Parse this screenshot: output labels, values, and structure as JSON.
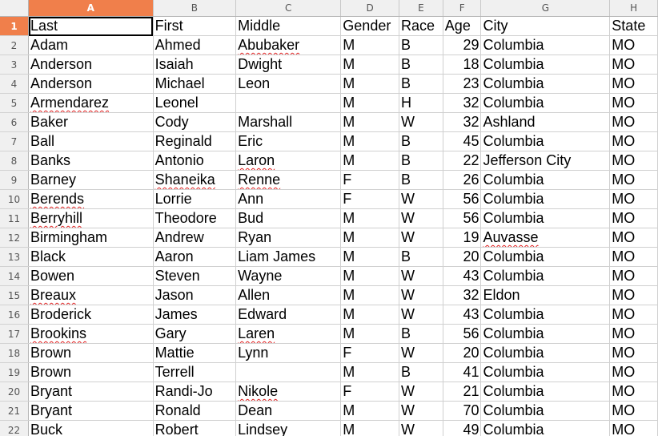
{
  "columns": [
    "A",
    "B",
    "C",
    "D",
    "E",
    "F",
    "G",
    "H"
  ],
  "active_column": "A",
  "active_row": 1,
  "rows": [
    {
      "num": "1",
      "cells": [
        "Last",
        "First",
        "Middle",
        "Gender",
        "Race",
        "Age",
        "City",
        "State"
      ]
    },
    {
      "num": "2",
      "cells": [
        "Adam",
        "Ahmed",
        "Abubaker",
        "M",
        "B",
        "29",
        "Columbia",
        "MO"
      ]
    },
    {
      "num": "3",
      "cells": [
        "Anderson",
        "Isaiah",
        "Dwight",
        "M",
        "B",
        "18",
        "Columbia",
        "MO"
      ]
    },
    {
      "num": "4",
      "cells": [
        "Anderson",
        "Michael",
        "Leon",
        "M",
        "B",
        "23",
        "Columbia",
        "MO"
      ]
    },
    {
      "num": "5",
      "cells": [
        "Armendarez",
        "Leonel",
        "",
        "M",
        "H",
        "32",
        "Columbia",
        "MO"
      ]
    },
    {
      "num": "6",
      "cells": [
        "Baker",
        "Cody",
        "Marshall",
        "M",
        "W",
        "32",
        "Ashland",
        "MO"
      ]
    },
    {
      "num": "7",
      "cells": [
        "Ball",
        "Reginald",
        "Eric",
        "M",
        "B",
        "45",
        "Columbia",
        "MO"
      ]
    },
    {
      "num": "8",
      "cells": [
        "Banks",
        "Antonio",
        "Laron",
        "M",
        "B",
        "22",
        "Jefferson City",
        "MO"
      ]
    },
    {
      "num": "9",
      "cells": [
        "Barney",
        "Shaneika",
        "Renne",
        "F",
        "B",
        "26",
        "Columbia",
        "MO"
      ]
    },
    {
      "num": "10",
      "cells": [
        "Berends",
        "Lorrie",
        "Ann",
        "F",
        "W",
        "56",
        "Columbia",
        "MO"
      ]
    },
    {
      "num": "11",
      "cells": [
        "Berryhill",
        "Theodore",
        "Bud",
        "M",
        "W",
        "56",
        "Columbia",
        "MO"
      ]
    },
    {
      "num": "12",
      "cells": [
        "Birmingham",
        "Andrew",
        "Ryan",
        "M",
        "W",
        "19",
        "Auvasse",
        "MO"
      ]
    },
    {
      "num": "13",
      "cells": [
        "Black",
        "Aaron",
        "Liam James",
        "M",
        "B",
        "20",
        "Columbia",
        "MO"
      ]
    },
    {
      "num": "14",
      "cells": [
        "Bowen",
        "Steven",
        "Wayne",
        "M",
        "W",
        "43",
        "Columbia",
        "MO"
      ]
    },
    {
      "num": "15",
      "cells": [
        "Breaux",
        "Jason",
        "Allen",
        "M",
        "W",
        "32",
        "Eldon",
        "MO"
      ]
    },
    {
      "num": "16",
      "cells": [
        "Broderick",
        "James",
        "Edward",
        "M",
        "W",
        "43",
        "Columbia",
        "MO"
      ]
    },
    {
      "num": "17",
      "cells": [
        "Brookins",
        "Gary",
        "Laren",
        "M",
        "B",
        "56",
        "Columbia",
        "MO"
      ]
    },
    {
      "num": "18",
      "cells": [
        "Brown",
        "Mattie",
        "Lynn",
        "F",
        "W",
        "20",
        "Columbia",
        "MO"
      ]
    },
    {
      "num": "19",
      "cells": [
        "Brown",
        "Terrell",
        "",
        "M",
        "B",
        "41",
        "Columbia",
        "MO"
      ]
    },
    {
      "num": "20",
      "cells": [
        "Bryant",
        "Randi-Jo",
        "Nikole",
        "F",
        "W",
        "21",
        "Columbia",
        "MO"
      ]
    },
    {
      "num": "21",
      "cells": [
        "Bryant",
        "Ronald",
        "Dean",
        "M",
        "W",
        "70",
        "Columbia",
        "MO"
      ]
    },
    {
      "num": "22",
      "cells": [
        "Buck",
        "Robert",
        "Lindsey",
        "M",
        "W",
        "49",
        "Columbia",
        "MO"
      ]
    }
  ],
  "misspelled_words": [
    "Abubaker",
    "Armendarez",
    "Laron",
    "Shaneika",
    "Renne",
    "Berends",
    "Berryhill",
    "Auvasse",
    "Breaux",
    "Brookins",
    "Laren",
    "Nikole",
    "Lindsey"
  ]
}
